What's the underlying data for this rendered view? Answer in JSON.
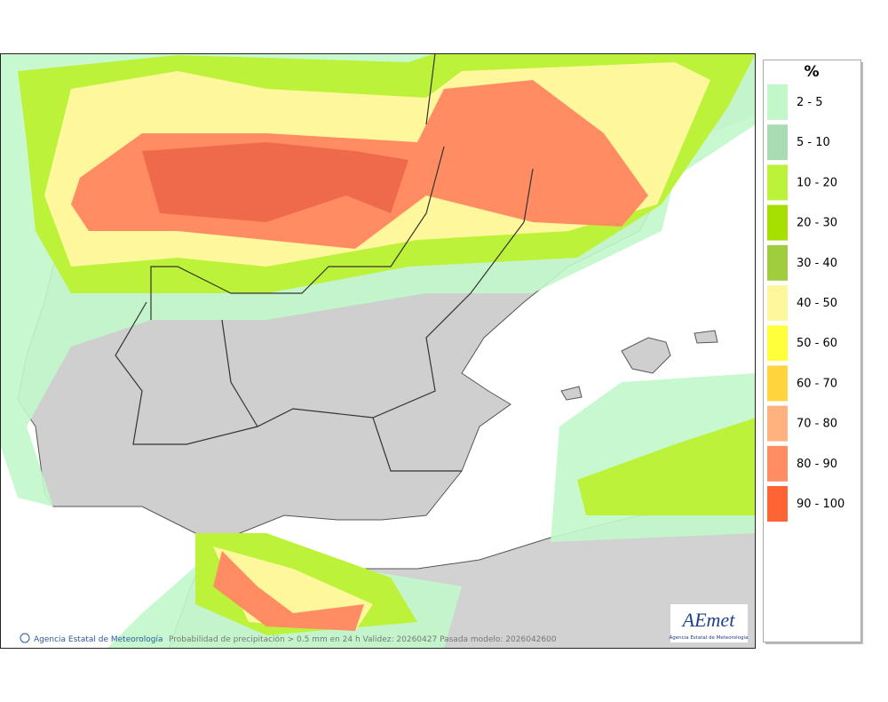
{
  "legend": {
    "title": "%",
    "items": [
      {
        "label": "2 - 5",
        "color": "#c2f7ca"
      },
      {
        "label": "5 - 10",
        "color": "#a9dcb2"
      },
      {
        "label": "10 - 20",
        "color": "#bdf23a"
      },
      {
        "label": "20 - 30",
        "color": "#a6e000"
      },
      {
        "label": "30 - 40",
        "color": "#9fcd3e"
      },
      {
        "label": "40 - 50",
        "color": "#fff79c"
      },
      {
        "label": "50 - 60",
        "color": "#ffff3c"
      },
      {
        "label": "60 - 70",
        "color": "#ffd43c"
      },
      {
        "label": "70 - 80",
        "color": "#ffb27e"
      },
      {
        "label": "80 - 90",
        "color": "#ff8c62"
      },
      {
        "label": "90 - 100",
        "color": "#ff6434"
      }
    ]
  },
  "footer": {
    "credit": "Agencia Estatal de Meteorología",
    "caption": "Probabilidad de precipitación > 0.5 mm en 24 h Validez: 20260427 Pasada modelo: 2026042600"
  },
  "logo": {
    "name": "AEmet",
    "subtitle": "Agencia Estatal de Meteorología"
  }
}
